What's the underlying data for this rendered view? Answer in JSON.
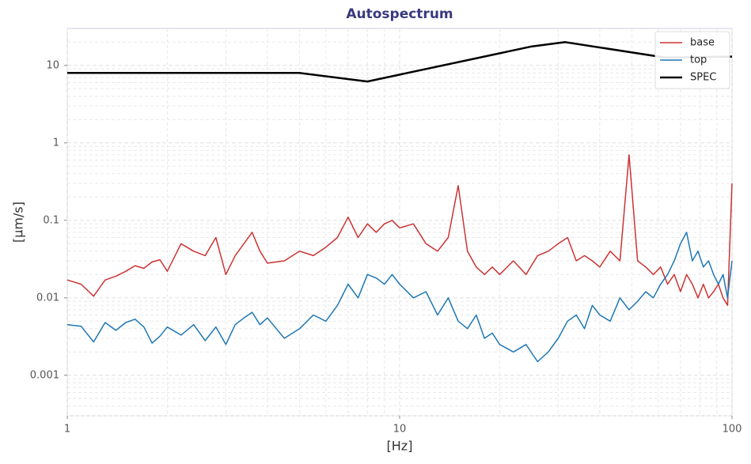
{
  "chart_data": {
    "type": "line",
    "title": "Autospectrum",
    "xlabel": "[Hz]",
    "ylabel": "[µm/s]",
    "xscale": "log",
    "yscale": "log",
    "grid": true,
    "minor_grid": true,
    "legend": "upper right",
    "xlim": [
      1,
      100
    ],
    "ylim": [
      0.0003,
      30
    ],
    "xticks": [
      1,
      10,
      100
    ],
    "yticks": [
      0.001,
      0.01,
      0.1,
      1,
      10
    ],
    "x": [
      1.0,
      1.1,
      1.2,
      1.3,
      1.4,
      1.5,
      1.6,
      1.7,
      1.8,
      1.9,
      2.0,
      2.2,
      2.4,
      2.6,
      2.8,
      3.0,
      3.2,
      3.4,
      3.6,
      3.8,
      4.0,
      4.5,
      5,
      5.5,
      6,
      6.5,
      7,
      7.5,
      8,
      8.5,
      9,
      9.5,
      10,
      11,
      12,
      13,
      14,
      15,
      16,
      17,
      18,
      19,
      20,
      22,
      24,
      26,
      28,
      30,
      32,
      34,
      36,
      38,
      40,
      43,
      46,
      49,
      52,
      55,
      58,
      61,
      64,
      67,
      70,
      73,
      76,
      79,
      82,
      85,
      88,
      91,
      94,
      97,
      100
    ],
    "series": [
      {
        "name": "base",
        "color": "#cc3333",
        "width": 1.5,
        "values": [
          0.017,
          0.015,
          0.0105,
          0.017,
          0.019,
          0.022,
          0.026,
          0.024,
          0.029,
          0.031,
          0.022,
          0.05,
          0.04,
          0.035,
          0.06,
          0.02,
          0.035,
          0.05,
          0.07,
          0.04,
          0.028,
          0.03,
          0.04,
          0.035,
          0.045,
          0.06,
          0.11,
          0.06,
          0.09,
          0.07,
          0.09,
          0.1,
          0.08,
          0.09,
          0.05,
          0.04,
          0.06,
          0.28,
          0.04,
          0.025,
          0.02,
          0.025,
          0.02,
          0.03,
          0.02,
          0.035,
          0.04,
          0.05,
          0.06,
          0.03,
          0.035,
          0.03,
          0.025,
          0.04,
          0.03,
          0.7,
          0.03,
          0.025,
          0.02,
          0.025,
          0.015,
          0.02,
          0.012,
          0.02,
          0.015,
          0.01,
          0.015,
          0.01,
          0.012,
          0.015,
          0.01,
          0.008,
          0.3
        ]
      },
      {
        "name": "top",
        "color": "#1f77b4",
        "width": 1.5,
        "values": [
          0.0045,
          0.0043,
          0.0027,
          0.0048,
          0.0038,
          0.0048,
          0.0053,
          0.0042,
          0.0026,
          0.0032,
          0.0042,
          0.0033,
          0.0045,
          0.0028,
          0.0042,
          0.0025,
          0.0045,
          0.0055,
          0.0065,
          0.0045,
          0.0055,
          0.003,
          0.004,
          0.006,
          0.005,
          0.008,
          0.015,
          0.01,
          0.02,
          0.018,
          0.015,
          0.02,
          0.015,
          0.01,
          0.012,
          0.006,
          0.01,
          0.005,
          0.004,
          0.006,
          0.003,
          0.0035,
          0.0025,
          0.002,
          0.0025,
          0.0015,
          0.002,
          0.003,
          0.005,
          0.006,
          0.004,
          0.008,
          0.006,
          0.005,
          0.01,
          0.007,
          0.009,
          0.012,
          0.01,
          0.015,
          0.02,
          0.03,
          0.05,
          0.07,
          0.03,
          0.04,
          0.025,
          0.03,
          0.02,
          0.015,
          0.02,
          0.01,
          0.03
        ]
      },
      {
        "name": "SPEC",
        "color": "#000000",
        "width": 2.5,
        "x": [
          1,
          5,
          8,
          25,
          31.5,
          63,
          100
        ],
        "values": [
          8,
          8,
          6.2,
          17.6,
          20,
          12.6,
          13
        ]
      }
    ]
  }
}
